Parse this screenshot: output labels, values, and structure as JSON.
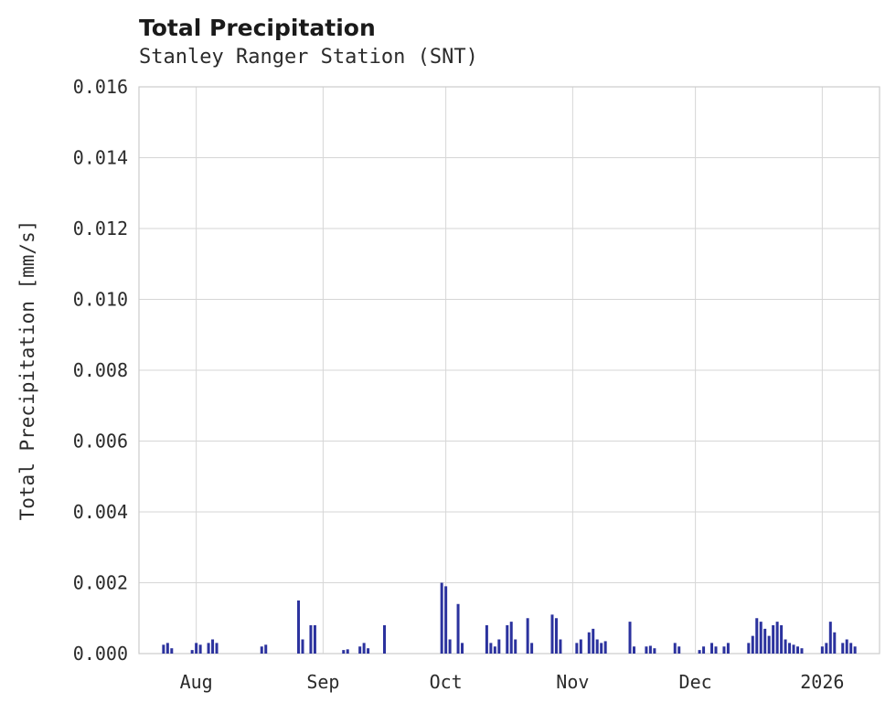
{
  "colors": {
    "bar": "#2b329e",
    "grid": "#d6d6d6",
    "plot_border": "#cccccc",
    "background": "#ffffff",
    "text": "#2b2b2b"
  },
  "chart_data": {
    "type": "bar",
    "title": "Total Precipitation",
    "subtitle": "Stanley Ranger Station (SNT)",
    "xlabel": "",
    "ylabel": "Total Precipitation [mm/s]",
    "ylim": [
      0,
      0.016
    ],
    "grid": true,
    "legend": "none",
    "yticks": [
      0.0,
      0.002,
      0.004,
      0.006,
      0.008,
      0.01,
      0.012,
      0.014,
      0.016
    ],
    "ytick_labels": [
      "0.000",
      "0.002",
      "0.004",
      "0.006",
      "0.008",
      "0.010",
      "0.012",
      "0.014",
      "0.016"
    ],
    "x_domain": [
      "2025-07-18",
      "2026-01-15"
    ],
    "xticks": [
      {
        "date": "2025-08-01",
        "label": "Aug"
      },
      {
        "date": "2025-09-01",
        "label": "Sep"
      },
      {
        "date": "2025-10-01",
        "label": "Oct"
      },
      {
        "date": "2025-11-01",
        "label": "Nov"
      },
      {
        "date": "2025-12-01",
        "label": "Dec"
      },
      {
        "date": "2026-01-01",
        "label": "2026"
      }
    ],
    "series": [
      {
        "name": "Total Precipitation",
        "points": [
          [
            "2025-07-24",
            0.00025
          ],
          [
            "2025-07-25",
            0.0003
          ],
          [
            "2025-07-26",
            0.00015
          ],
          [
            "2025-07-31",
            0.0001
          ],
          [
            "2025-08-01",
            0.0003
          ],
          [
            "2025-08-02",
            0.00025
          ],
          [
            "2025-08-04",
            0.0003
          ],
          [
            "2025-08-05",
            0.0004
          ],
          [
            "2025-08-06",
            0.0003
          ],
          [
            "2025-08-17",
            0.0002
          ],
          [
            "2025-08-18",
            0.00025
          ],
          [
            "2025-08-26",
            0.0015
          ],
          [
            "2025-08-27",
            0.0004
          ],
          [
            "2025-08-29",
            0.0008
          ],
          [
            "2025-08-30",
            0.0008
          ],
          [
            "2025-09-06",
            0.0001
          ],
          [
            "2025-09-07",
            0.00012
          ],
          [
            "2025-09-10",
            0.0002
          ],
          [
            "2025-09-11",
            0.0003
          ],
          [
            "2025-09-12",
            0.00015
          ],
          [
            "2025-09-16",
            0.0008
          ],
          [
            "2025-09-30",
            0.002
          ],
          [
            "2025-10-01",
            0.0019
          ],
          [
            "2025-10-02",
            0.0004
          ],
          [
            "2025-10-04",
            0.0014
          ],
          [
            "2025-10-05",
            0.0003
          ],
          [
            "2025-10-11",
            0.0008
          ],
          [
            "2025-10-12",
            0.0003
          ],
          [
            "2025-10-13",
            0.0002
          ],
          [
            "2025-10-14",
            0.0004
          ],
          [
            "2025-10-16",
            0.0008
          ],
          [
            "2025-10-17",
            0.0009
          ],
          [
            "2025-10-18",
            0.0004
          ],
          [
            "2025-10-21",
            0.001
          ],
          [
            "2025-10-22",
            0.0003
          ],
          [
            "2025-10-27",
            0.0011
          ],
          [
            "2025-10-28",
            0.001
          ],
          [
            "2025-10-29",
            0.0004
          ],
          [
            "2025-11-02",
            0.0003
          ],
          [
            "2025-11-03",
            0.0004
          ],
          [
            "2025-11-05",
            0.0006
          ],
          [
            "2025-11-06",
            0.0007
          ],
          [
            "2025-11-07",
            0.0004
          ],
          [
            "2025-11-08",
            0.0003
          ],
          [
            "2025-11-09",
            0.00035
          ],
          [
            "2025-11-15",
            0.0009
          ],
          [
            "2025-11-16",
            0.0002
          ],
          [
            "2025-11-19",
            0.0002
          ],
          [
            "2025-11-20",
            0.00022
          ],
          [
            "2025-11-21",
            0.00015
          ],
          [
            "2025-11-26",
            0.0003
          ],
          [
            "2025-11-27",
            0.0002
          ],
          [
            "2025-12-02",
            0.0001
          ],
          [
            "2025-12-03",
            0.0002
          ],
          [
            "2025-12-05",
            0.0003
          ],
          [
            "2025-12-06",
            0.0002
          ],
          [
            "2025-12-08",
            0.0002
          ],
          [
            "2025-12-09",
            0.0003
          ],
          [
            "2025-12-14",
            0.0003
          ],
          [
            "2025-12-15",
            0.0005
          ],
          [
            "2025-12-16",
            0.001
          ],
          [
            "2025-12-17",
            0.0009
          ],
          [
            "2025-12-18",
            0.0007
          ],
          [
            "2025-12-19",
            0.0005
          ],
          [
            "2025-12-20",
            0.0008
          ],
          [
            "2025-12-21",
            0.0009
          ],
          [
            "2025-12-22",
            0.0008
          ],
          [
            "2025-12-23",
            0.0004
          ],
          [
            "2025-12-24",
            0.0003
          ],
          [
            "2025-12-25",
            0.00025
          ],
          [
            "2025-12-26",
            0.0002
          ],
          [
            "2025-12-27",
            0.00015
          ],
          [
            "2026-01-01",
            0.0002
          ],
          [
            "2026-01-02",
            0.0003
          ],
          [
            "2026-01-03",
            0.0009
          ],
          [
            "2026-01-04",
            0.0006
          ],
          [
            "2026-01-06",
            0.0003
          ],
          [
            "2026-01-07",
            0.0004
          ],
          [
            "2026-01-08",
            0.0003
          ],
          [
            "2026-01-09",
            0.0002
          ]
        ]
      }
    ]
  }
}
